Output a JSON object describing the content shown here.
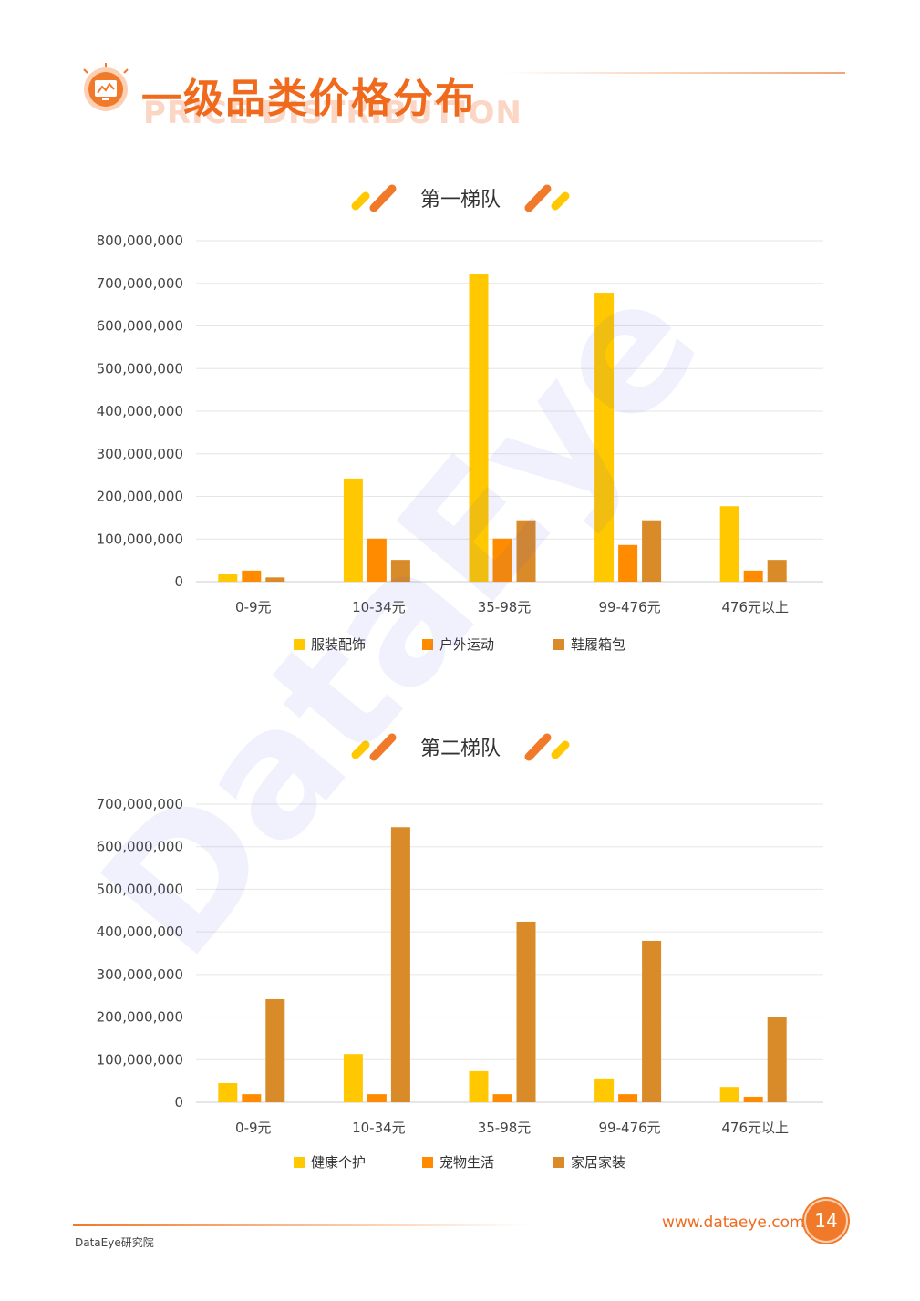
{
  "header": {
    "title": "一级品类价格分布",
    "subtitle": "PRICE DISTRIBUTION"
  },
  "watermark": "DataEye",
  "chart_data": [
    {
      "type": "bar",
      "title": "第一梯队",
      "categories": [
        "0-9元",
        "10-34元",
        "35-98元",
        "99-476元",
        "476元以上"
      ],
      "yticks": [
        "0",
        "100,000,000",
        "200,000,000",
        "300,000,000",
        "400,000,000",
        "500,000,000",
        "600,000,000",
        "700,000,000",
        "800,000,000"
      ],
      "ylim": [
        0,
        800000000
      ],
      "grid": true,
      "legend_position": "bottom",
      "series": [
        {
          "name": "服装配饰",
          "color": "#ffc800",
          "values": [
            17000000,
            242000000,
            722000000,
            678000000,
            177000000
          ]
        },
        {
          "name": "户外运动",
          "color": "#ff8c00",
          "values": [
            26000000,
            101000000,
            101000000,
            86000000,
            26000000
          ]
        },
        {
          "name": "鞋履箱包",
          "color": "#d98b2a",
          "values": [
            10000000,
            51000000,
            144000000,
            144000000,
            51000000
          ]
        }
      ]
    },
    {
      "type": "bar",
      "title": "第二梯队",
      "categories": [
        "0-9元",
        "10-34元",
        "35-98元",
        "99-476元",
        "476元以上"
      ],
      "yticks": [
        "0",
        "100,000,000",
        "200,000,000",
        "300,000,000",
        "400,000,000",
        "500,000,000",
        "600,000,000",
        "700,000,000"
      ],
      "ylim": [
        0,
        700000000
      ],
      "grid": true,
      "legend_position": "bottom",
      "series": [
        {
          "name": "健康个护",
          "color": "#ffc800",
          "values": [
            45000000,
            113000000,
            73000000,
            56000000,
            36000000
          ]
        },
        {
          "name": "宠物生活",
          "color": "#ff8c00",
          "values": [
            19000000,
            19000000,
            19000000,
            19000000,
            13000000
          ]
        },
        {
          "name": "家居家装",
          "color": "#d98b2a",
          "values": [
            242000000,
            646000000,
            424000000,
            379000000,
            201000000
          ]
        }
      ]
    }
  ],
  "footer": {
    "org": "DataEye研究院",
    "url": "www.dataeye.com",
    "page_number": "14"
  }
}
